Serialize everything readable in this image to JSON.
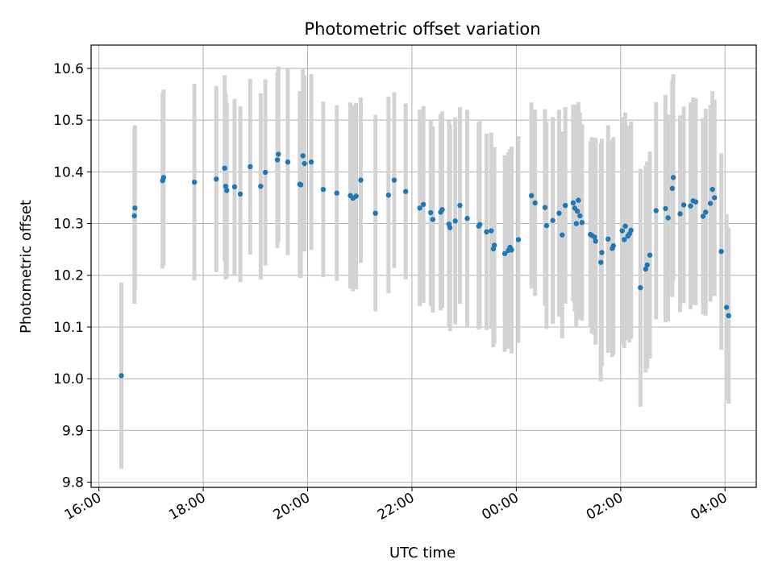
{
  "chart_data": {
    "type": "scatter",
    "title": "Photometric offset variation",
    "xlabel": "UTC time",
    "ylabel": "Photometric offset",
    "x_unit": "hours (UTC, continuing past midnight)",
    "xlim": [
      15.85,
      28.6
    ],
    "ylim": [
      9.79,
      10.645
    ],
    "x_ticks": [
      {
        "value": 16,
        "label": "16:00"
      },
      {
        "value": 18,
        "label": "18:00"
      },
      {
        "value": 20,
        "label": "20:00"
      },
      {
        "value": 22,
        "label": "22:00"
      },
      {
        "value": 24,
        "label": "00:00"
      },
      {
        "value": 26,
        "label": "02:00"
      },
      {
        "value": 28,
        "label": "04:00"
      }
    ],
    "y_ticks": [
      {
        "value": 9.8,
        "label": "9.8"
      },
      {
        "value": 9.9,
        "label": "9.9"
      },
      {
        "value": 10.0,
        "label": "10.0"
      },
      {
        "value": 10.1,
        "label": "10.1"
      },
      {
        "value": 10.2,
        "label": "10.2"
      },
      {
        "value": 10.3,
        "label": "10.3"
      },
      {
        "value": 10.4,
        "label": "10.4"
      },
      {
        "value": 10.5,
        "label": "10.5"
      },
      {
        "value": 10.6,
        "label": "10.6"
      }
    ],
    "grid": true,
    "point_color": "#1f77b4",
    "errorbar_color": "#d3d3d3",
    "points": [
      [
        16.43,
        10.006,
        0.18
      ],
      [
        16.68,
        10.315,
        0.17
      ],
      [
        16.69,
        10.33,
        0.16
      ],
      [
        17.22,
        10.383,
        0.17
      ],
      [
        17.24,
        10.389,
        0.17
      ],
      [
        17.83,
        10.38,
        0.19
      ],
      [
        18.25,
        10.386,
        0.18
      ],
      [
        18.41,
        10.407,
        0.18
      ],
      [
        18.43,
        10.372,
        0.18
      ],
      [
        18.45,
        10.364,
        0.17
      ],
      [
        18.6,
        10.371,
        0.17
      ],
      [
        18.71,
        10.357,
        0.17
      ],
      [
        18.9,
        10.41,
        0.17
      ],
      [
        19.1,
        10.372,
        0.18
      ],
      [
        19.19,
        10.399,
        0.18
      ],
      [
        19.42,
        10.423,
        0.17
      ],
      [
        19.44,
        10.434,
        0.17
      ],
      [
        19.62,
        10.419,
        0.18
      ],
      [
        19.85,
        10.376,
        0.18
      ],
      [
        19.87,
        10.375,
        0.18
      ],
      [
        19.91,
        10.431,
        0.17
      ],
      [
        19.94,
        10.416,
        0.17
      ],
      [
        20.07,
        10.419,
        0.17
      ],
      [
        20.3,
        10.366,
        0.17
      ],
      [
        20.56,
        10.359,
        0.17
      ],
      [
        20.82,
        10.354,
        0.18
      ],
      [
        20.87,
        10.349,
        0.18
      ],
      [
        20.93,
        10.353,
        0.18
      ],
      [
        21.02,
        10.384,
        0.16
      ],
      [
        21.3,
        10.32,
        0.19
      ],
      [
        21.55,
        10.355,
        0.19
      ],
      [
        21.66,
        10.384,
        0.17
      ],
      [
        21.88,
        10.362,
        0.17
      ],
      [
        22.15,
        10.33,
        0.19
      ],
      [
        22.22,
        10.337,
        0.19
      ],
      [
        22.36,
        10.321,
        0.18
      ],
      [
        22.4,
        10.308,
        0.18
      ],
      [
        22.55,
        10.322,
        0.19
      ],
      [
        22.58,
        10.327,
        0.19
      ],
      [
        22.71,
        10.299,
        0.2
      ],
      [
        22.73,
        10.292,
        0.2
      ],
      [
        22.83,
        10.305,
        0.2
      ],
      [
        22.92,
        10.335,
        0.19
      ],
      [
        23.06,
        10.31,
        0.21
      ],
      [
        23.28,
        10.295,
        0.2
      ],
      [
        23.3,
        10.298,
        0.2
      ],
      [
        23.43,
        10.284,
        0.19
      ],
      [
        23.52,
        10.286,
        0.19
      ],
      [
        23.56,
        10.251,
        0.19
      ],
      [
        23.58,
        10.258,
        0.19
      ],
      [
        23.78,
        10.242,
        0.19
      ],
      [
        23.85,
        10.248,
        0.19
      ],
      [
        23.88,
        10.254,
        0.19
      ],
      [
        23.91,
        10.249,
        0.2
      ],
      [
        24.04,
        10.269,
        0.2
      ],
      [
        24.29,
        10.354,
        0.18
      ],
      [
        24.36,
        10.34,
        0.18
      ],
      [
        24.55,
        10.331,
        0.19
      ],
      [
        24.58,
        10.296,
        0.2
      ],
      [
        24.7,
        10.306,
        0.2
      ],
      [
        24.82,
        10.32,
        0.2
      ],
      [
        24.88,
        10.278,
        0.2
      ],
      [
        24.94,
        10.335,
        0.19
      ],
      [
        25.09,
        10.34,
        0.19
      ],
      [
        25.12,
        10.33,
        0.2
      ],
      [
        25.15,
        10.3,
        0.2
      ],
      [
        25.17,
        10.324,
        0.19
      ],
      [
        25.19,
        10.345,
        0.19
      ],
      [
        25.22,
        10.315,
        0.2
      ],
      [
        25.26,
        10.302,
        0.19
      ],
      [
        25.42,
        10.279,
        0.18
      ],
      [
        25.45,
        10.277,
        0.19
      ],
      [
        25.5,
        10.274,
        0.19
      ],
      [
        25.52,
        10.266,
        0.2
      ],
      [
        25.62,
        10.225,
        0.23
      ],
      [
        25.64,
        10.244,
        0.22
      ],
      [
        25.76,
        10.27,
        0.22
      ],
      [
        25.84,
        10.252,
        0.21
      ],
      [
        25.86,
        10.257,
        0.21
      ],
      [
        26.03,
        10.286,
        0.22
      ],
      [
        26.07,
        10.269,
        0.21
      ],
      [
        26.09,
        10.295,
        0.22
      ],
      [
        26.14,
        10.276,
        0.2
      ],
      [
        26.17,
        10.28,
        0.21
      ],
      [
        26.2,
        10.287,
        0.21
      ],
      [
        26.38,
        10.176,
        0.23
      ],
      [
        26.48,
        10.212,
        0.2
      ],
      [
        26.51,
        10.22,
        0.2
      ],
      [
        26.56,
        10.239,
        0.2
      ],
      [
        26.68,
        10.325,
        0.21
      ],
      [
        26.86,
        10.329,
        0.22
      ],
      [
        26.91,
        10.311,
        0.2
      ],
      [
        26.99,
        10.368,
        0.21
      ],
      [
        27.01,
        10.389,
        0.2
      ],
      [
        27.14,
        10.319,
        0.19
      ],
      [
        27.21,
        10.336,
        0.19
      ],
      [
        27.34,
        10.334,
        0.2
      ],
      [
        27.39,
        10.344,
        0.2
      ],
      [
        27.44,
        10.342,
        0.2
      ],
      [
        27.58,
        10.314,
        0.19
      ],
      [
        27.63,
        10.322,
        0.2
      ],
      [
        27.72,
        10.339,
        0.19
      ],
      [
        27.76,
        10.366,
        0.19
      ],
      [
        27.8,
        10.35,
        0.19
      ],
      [
        27.93,
        10.246,
        0.19
      ],
      [
        28.03,
        10.138,
        0.18
      ],
      [
        28.07,
        10.122,
        0.17
      ]
    ]
  }
}
